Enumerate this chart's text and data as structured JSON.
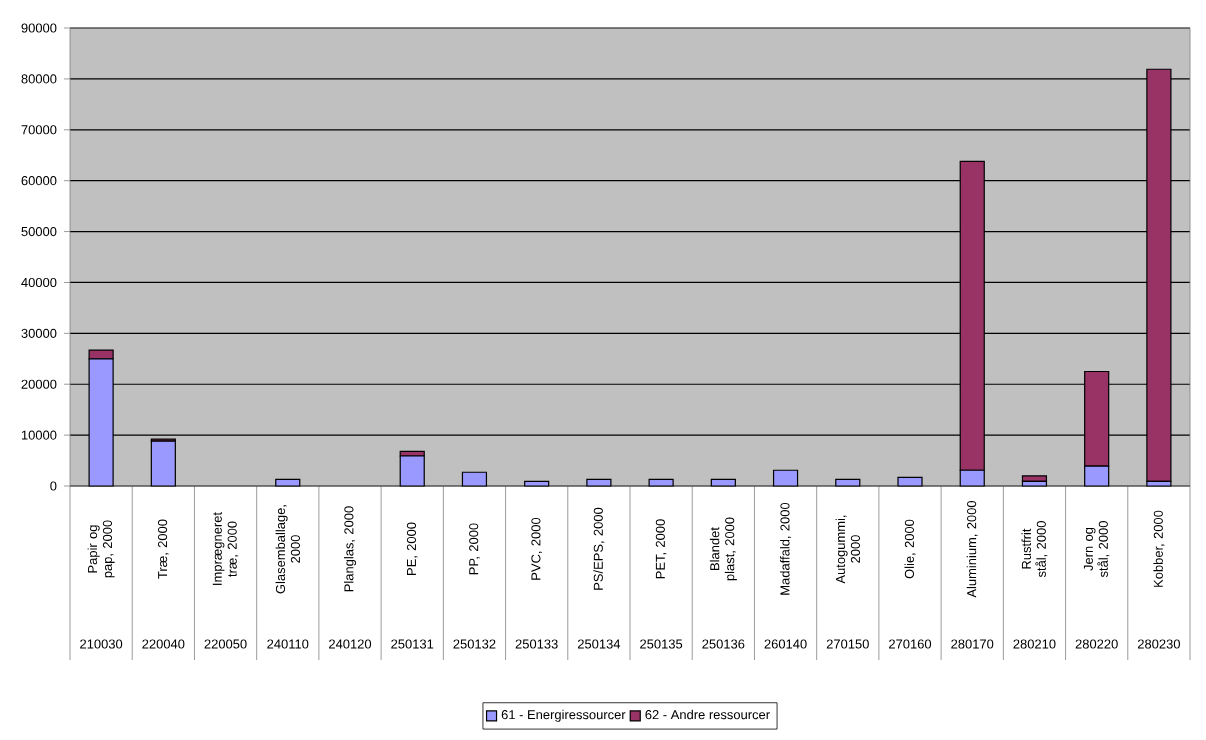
{
  "chart_data": {
    "type": "bar",
    "stacked": true,
    "categories": [
      "Papir og pap, 2000",
      "Træ, 2000",
      "Imprægneret træ, 2000",
      "Glasemballage, 2000",
      "Planglas, 2000",
      "PE, 2000",
      "PP, 2000",
      "PVC, 2000",
      "PS/EPS, 2000",
      "PET, 2000",
      "Blandet plast, 2000",
      "Madaffald, 2000",
      "Autogummi, 2000",
      "Olie, 2000",
      "Aluminium, 2000",
      "Rustfrit stål, 2000",
      "Jern og stål, 2000",
      "Kobber, 2000"
    ],
    "series": [
      {
        "name": "61 - Energiressourcer",
        "color": "#9999ff",
        "values": [
          25000,
          8800,
          0,
          1300,
          0,
          5900,
          2700,
          900,
          1300,
          1300,
          1300,
          3100,
          1300,
          1700,
          3100,
          900,
          3900,
          900
        ]
      },
      {
        "name": "62 - Andre ressourcer",
        "color": "#993366",
        "values": [
          1700,
          400,
          0,
          0,
          0,
          900,
          0,
          0,
          0,
          0,
          0,
          0,
          0,
          0,
          60700,
          1100,
          18600,
          81000
        ]
      }
    ],
    "ylim": [
      0,
      90000
    ],
    "yticks": [
      0,
      10000,
      20000,
      30000,
      40000,
      50000,
      60000,
      70000,
      80000,
      90000
    ],
    "grid": "y",
    "legend": "bottom",
    "annotations": [
      "210030",
      "220040",
      "220050",
      "240110",
      "240120",
      "250131",
      "250132",
      "250133",
      "250134",
      "250135",
      "250136",
      "260140",
      "270150",
      "270160",
      "280170",
      "280210",
      "280220",
      "280230"
    ]
  }
}
